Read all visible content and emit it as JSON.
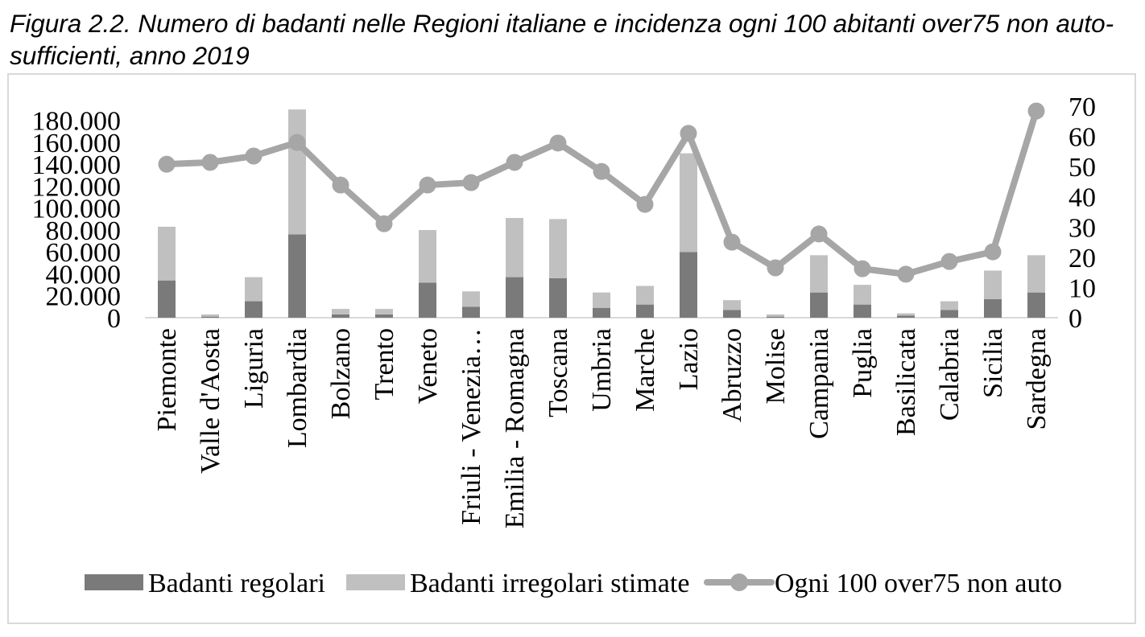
{
  "chart_data": {
    "type": "bar",
    "stacked": true,
    "title_lines": [
      "Figura 2.2. Numero di badanti nelle Regioni italiane e incidenza ogni 100 abitanti over75 non auto-",
      "sufficienti, anno 2019"
    ],
    "categories": [
      "Piemonte",
      "Valle d'Aosta",
      "Liguria",
      "Lombardia",
      "Bolzano",
      "Trento",
      "Veneto",
      "Friuli - Venezia…",
      "Emilia - Romagna",
      "Toscana",
      "Umbria",
      "Marche",
      "Lazio",
      "Abruzzo",
      "Molise",
      "Campania",
      "Puglia",
      "Basilicata",
      "Calabria",
      "Sicilia",
      "Sardegna"
    ],
    "series": [
      {
        "name": "Badanti regolari",
        "type": "bar",
        "axis": "left",
        "color": "#7a7a7a",
        "values": [
          34000,
          1000,
          15000,
          76000,
          3000,
          3000,
          32000,
          10000,
          37000,
          36000,
          9000,
          12000,
          60000,
          7000,
          1000,
          23000,
          12000,
          2000,
          7000,
          17000,
          23000
        ]
      },
      {
        "name": "Badanti irregolari stimate",
        "type": "bar",
        "axis": "left",
        "color": "#c0c0c0",
        "values": [
          49000,
          2000,
          22000,
          114000,
          5000,
          5000,
          48000,
          14000,
          54000,
          54000,
          14000,
          17000,
          90000,
          9000,
          2000,
          34000,
          18000,
          2000,
          8000,
          26000,
          34000
        ]
      },
      {
        "name": "Ogni 100 over75 non auto",
        "type": "line",
        "axis": "right",
        "marker": "circle",
        "color": "#a6a6a6",
        "values": [
          50.8,
          51.4,
          53.5,
          58.0,
          43.9,
          31.1,
          43.9,
          44.7,
          51.4,
          57.8,
          48.4,
          37.5,
          61.0,
          25.0,
          16.5,
          27.7,
          16.2,
          14.4,
          18.6,
          21.8,
          68.4
        ]
      }
    ],
    "y_left": {
      "range": [
        0,
        193000
      ],
      "ticks": [
        {
          "value": 0,
          "label": "0"
        },
        {
          "value": 20000,
          "label": "20.000"
        },
        {
          "value": 40000,
          "label": "40.000"
        },
        {
          "value": 60000,
          "label": "60.000"
        },
        {
          "value": 80000,
          "label": "80.000"
        },
        {
          "value": 100000,
          "label": "100.000"
        },
        {
          "value": 120000,
          "label": "120.000"
        },
        {
          "value": 140000,
          "label": "140.000"
        },
        {
          "value": 160000,
          "label": "160.000"
        },
        {
          "value": 180000,
          "label": "180.000"
        }
      ]
    },
    "y_right": {
      "range": [
        0,
        70
      ],
      "ticks": [
        {
          "value": 0,
          "label": "0"
        },
        {
          "value": 10,
          "label": "10"
        },
        {
          "value": 20,
          "label": "20"
        },
        {
          "value": 30,
          "label": "30"
        },
        {
          "value": 40,
          "label": "40"
        },
        {
          "value": 50,
          "label": "50"
        },
        {
          "value": 60,
          "label": "60"
        },
        {
          "value": 70,
          "label": "70"
        }
      ]
    },
    "grid": false,
    "legend": "bottom"
  }
}
